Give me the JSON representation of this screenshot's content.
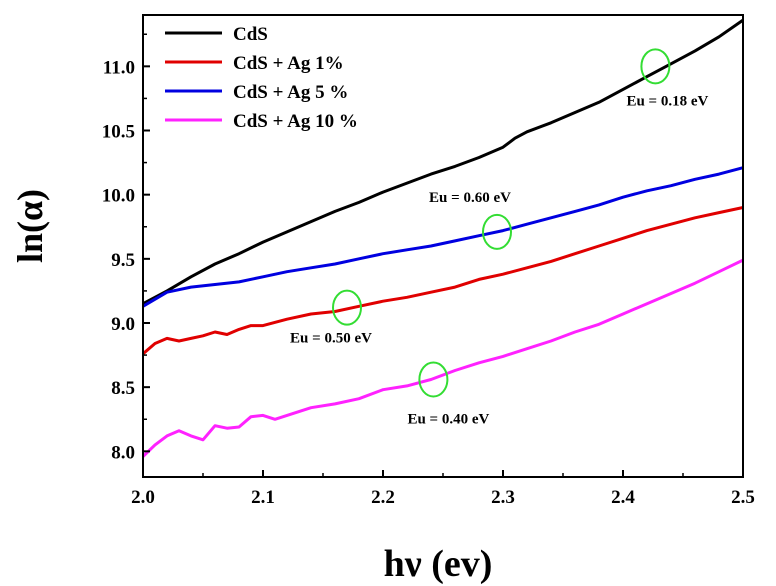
{
  "chart_data": {
    "type": "line",
    "title": "",
    "xlabel": "hν (ev)",
    "ylabel": "ln(α)",
    "xlim": [
      2.0,
      2.5
    ],
    "ylim": [
      7.8,
      11.4
    ],
    "xticks": [
      "2.0",
      "2.1",
      "2.2",
      "2.3",
      "2.4",
      "2.5"
    ],
    "yticks": [
      "8.0",
      "8.5",
      "9.0",
      "9.5",
      "10.0",
      "10.5",
      "11.0"
    ],
    "legend_position": "top-left",
    "series": [
      {
        "name": "CdS",
        "color": "#000000",
        "x": [
          2.0,
          2.02,
          2.04,
          2.06,
          2.08,
          2.1,
          2.12,
          2.14,
          2.16,
          2.18,
          2.2,
          2.22,
          2.24,
          2.26,
          2.28,
          2.3,
          2.31,
          2.32,
          2.34,
          2.36,
          2.38,
          2.4,
          2.42,
          2.44,
          2.46,
          2.48,
          2.5
        ],
        "y": [
          9.15,
          9.25,
          9.36,
          9.46,
          9.54,
          9.63,
          9.71,
          9.79,
          9.87,
          9.94,
          10.02,
          10.09,
          10.16,
          10.22,
          10.29,
          10.37,
          10.44,
          10.49,
          10.56,
          10.64,
          10.72,
          10.82,
          10.92,
          11.02,
          11.12,
          11.23,
          11.36
        ]
      },
      {
        "name": "CdS + Ag 1%",
        "color": "#e00000",
        "x": [
          2.0,
          2.01,
          2.02,
          2.03,
          2.04,
          2.05,
          2.06,
          2.07,
          2.08,
          2.09,
          2.1,
          2.12,
          2.14,
          2.16,
          2.18,
          2.2,
          2.22,
          2.24,
          2.26,
          2.28,
          2.3,
          2.32,
          2.34,
          2.36,
          2.38,
          2.4,
          2.42,
          2.44,
          2.46,
          2.48,
          2.5
        ],
        "y": [
          8.76,
          8.84,
          8.88,
          8.86,
          8.88,
          8.9,
          8.93,
          8.91,
          8.95,
          8.98,
          8.98,
          9.03,
          9.07,
          9.09,
          9.13,
          9.17,
          9.2,
          9.24,
          9.28,
          9.34,
          9.38,
          9.43,
          9.48,
          9.54,
          9.6,
          9.66,
          9.72,
          9.77,
          9.82,
          9.86,
          9.9
        ]
      },
      {
        "name": "CdS + Ag 5 %",
        "color": "#0000e0",
        "x": [
          2.0,
          2.02,
          2.04,
          2.06,
          2.08,
          2.1,
          2.12,
          2.14,
          2.16,
          2.18,
          2.2,
          2.22,
          2.24,
          2.26,
          2.28,
          2.3,
          2.32,
          2.34,
          2.36,
          2.38,
          2.4,
          2.42,
          2.44,
          2.46,
          2.48,
          2.5
        ],
        "y": [
          9.13,
          9.24,
          9.28,
          9.3,
          9.32,
          9.36,
          9.4,
          9.43,
          9.46,
          9.5,
          9.54,
          9.57,
          9.6,
          9.64,
          9.68,
          9.72,
          9.77,
          9.82,
          9.87,
          9.92,
          9.98,
          10.03,
          10.07,
          10.12,
          10.16,
          10.21
        ]
      },
      {
        "name": "CdS + Ag 10 %",
        "color": "#ff22ff",
        "x": [
          2.0,
          2.01,
          2.02,
          2.03,
          2.04,
          2.05,
          2.06,
          2.07,
          2.08,
          2.09,
          2.1,
          2.11,
          2.12,
          2.14,
          2.16,
          2.18,
          2.2,
          2.22,
          2.24,
          2.26,
          2.28,
          2.3,
          2.32,
          2.34,
          2.36,
          2.38,
          2.4,
          2.42,
          2.44,
          2.46,
          2.48,
          2.5
        ],
        "y": [
          7.96,
          8.05,
          8.12,
          8.16,
          8.12,
          8.09,
          8.2,
          8.18,
          8.19,
          8.27,
          8.28,
          8.25,
          8.28,
          8.34,
          8.37,
          8.41,
          8.48,
          8.51,
          8.56,
          8.63,
          8.69,
          8.74,
          8.8,
          8.86,
          8.93,
          8.99,
          9.07,
          9.15,
          9.23,
          9.31,
          9.4,
          9.49
        ]
      }
    ],
    "annotations": [
      {
        "text": "Eu = 0.18 eV",
        "x": 2.427,
        "y": 11.0,
        "circle_color": "#33dd33"
      },
      {
        "text": "Eu = 0.60 eV",
        "x": 2.295,
        "y": 9.71,
        "circle_color": "#33dd33"
      },
      {
        "text": "Eu = 0.50 eV",
        "x": 2.17,
        "y": 9.12,
        "circle_color": "#33dd33"
      },
      {
        "text": "Eu = 0.40 eV",
        "x": 2.242,
        "y": 8.56,
        "circle_color": "#33dd33"
      }
    ]
  }
}
